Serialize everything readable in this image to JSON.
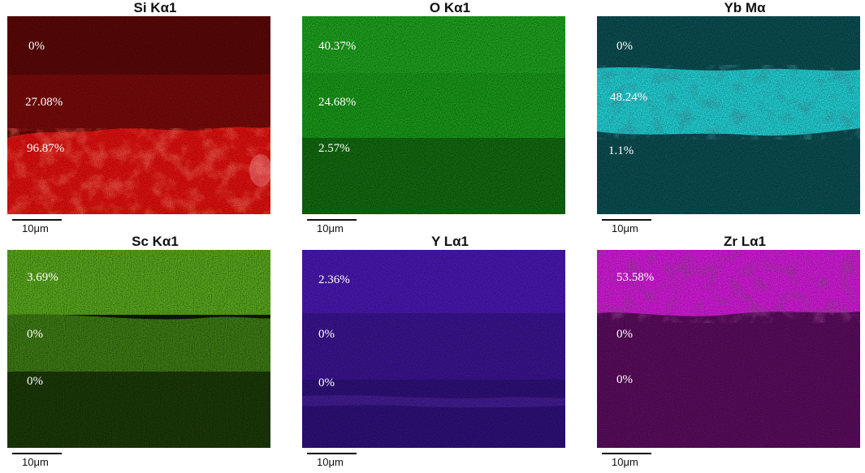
{
  "maps": [
    {
      "title": "Si Kα1",
      "color": "#cc0000",
      "labels": [
        "0%",
        "27.08%",
        "96.87%"
      ],
      "scale_bar": "10μm"
    },
    {
      "title": "O Kα1",
      "color": "#19a319",
      "labels": [
        "40.37%",
        "24.68%",
        "2.57%"
      ],
      "scale_bar": "10μm"
    },
    {
      "title": "Yb Mα",
      "color": "#00c8c8",
      "labels": [
        "0%",
        "48.24%",
        "1.1%"
      ],
      "scale_bar": "10μm"
    },
    {
      "title": "Sc Kα1",
      "color": "#66bb1e",
      "labels": [
        "3.69%",
        "0%",
        "0%"
      ],
      "scale_bar": "10μm"
    },
    {
      "title": "Y Lα1",
      "color": "#5a14d2",
      "labels": [
        "2.36%",
        "0%",
        "0%"
      ],
      "scale_bar": "10μm"
    },
    {
      "title": "Zr Lα1",
      "color": "#c214c8",
      "labels": [
        "53.58%",
        "0%",
        "0%"
      ],
      "scale_bar": "10μm"
    }
  ]
}
